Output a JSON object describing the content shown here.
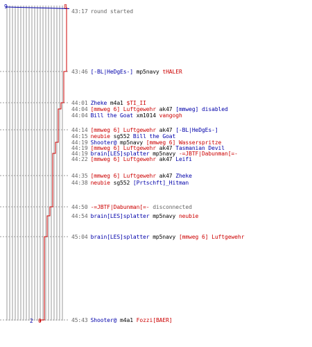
{
  "colors": {
    "blue": "#0000aa",
    "red": "#cc0000",
    "grid": "#999999",
    "time": "#666666"
  },
  "counters": {
    "blue_start": "9",
    "red_start": "8",
    "blue_end": "2",
    "red_end": "0"
  },
  "events": [
    {
      "time": "43:17",
      "parts": [
        {
          "text": "round started",
          "color": "gray"
        }
      ]
    },
    {
      "time": "43:46",
      "parts": [
        {
          "text": "[-BL|HeDgEs-]",
          "color": "blue"
        },
        {
          "text": "mp5navy",
          "color": "black"
        },
        {
          "text": "tHALER",
          "color": "red"
        }
      ]
    },
    {
      "time": "44:01",
      "parts": [
        {
          "text": "Zheke",
          "color": "blue"
        },
        {
          "text": "m4a1",
          "color": "black"
        },
        {
          "text": "$TI_II",
          "color": "red"
        }
      ]
    },
    {
      "time": "44:04",
      "parts": [
        {
          "text": "[mmweg 6] Luftgewehr",
          "color": "red"
        },
        {
          "text": "ak47",
          "color": "black"
        },
        {
          "text": "[mmweg] disabled",
          "color": "blue"
        }
      ]
    },
    {
      "time": "44:04",
      "parts": [
        {
          "text": "Bill the Goat",
          "color": "blue"
        },
        {
          "text": "xm1014",
          "color": "black"
        },
        {
          "text": "vangogh",
          "color": "red"
        }
      ]
    },
    {
      "time": "44:14",
      "parts": [
        {
          "text": "[mmweg 6] Luftgewehr",
          "color": "red"
        },
        {
          "text": "ak47",
          "color": "black"
        },
        {
          "text": "[-BL|HeDgEs-]",
          "color": "blue"
        }
      ]
    },
    {
      "time": "44:15",
      "parts": [
        {
          "text": "neubie",
          "color": "red"
        },
        {
          "text": "sg552",
          "color": "black"
        },
        {
          "text": "Bill the Goat",
          "color": "blue"
        }
      ]
    },
    {
      "time": "44:19",
      "parts": [
        {
          "text": "Shooter@",
          "color": "blue"
        },
        {
          "text": "mp5navy",
          "color": "black"
        },
        {
          "text": "[mmweg 6] Wasserspritze",
          "color": "red"
        }
      ]
    },
    {
      "time": "44:19",
      "parts": [
        {
          "text": "[mmweg 6] Luftgewehr",
          "color": "red"
        },
        {
          "text": "ak47",
          "color": "black"
        },
        {
          "text": "Tasmanian Devil",
          "color": "blue"
        }
      ]
    },
    {
      "time": "44:19",
      "parts": [
        {
          "text": "brain[LES]splatter",
          "color": "blue"
        },
        {
          "text": "mp5navy",
          "color": "black"
        },
        {
          "text": "-=JBTF|Dabunman[=-",
          "color": "red"
        }
      ]
    },
    {
      "time": "44:22",
      "parts": [
        {
          "text": "[mmweg 6] Luftgewehr",
          "color": "red"
        },
        {
          "text": "ak47",
          "color": "black"
        },
        {
          "text": "Leifi",
          "color": "blue"
        }
      ]
    },
    {
      "time": "44:35",
      "parts": [
        {
          "text": "[mmweg 6] Luftgewehr",
          "color": "red"
        },
        {
          "text": "ak47",
          "color": "black"
        },
        {
          "text": "Zheke",
          "color": "blue"
        }
      ]
    },
    {
      "time": "44:38",
      "parts": [
        {
          "text": "neubie",
          "color": "red"
        },
        {
          "text": "sg552",
          "color": "black"
        },
        {
          "text": "[Prtschft]_Hitman",
          "color": "blue"
        }
      ]
    },
    {
      "time": "44:50",
      "parts": [
        {
          "text": "-=JBTF|Dabunman[=-",
          "color": "red"
        },
        {
          "text": "disconnected",
          "color": "gray"
        }
      ]
    },
    {
      "time": "44:54",
      "parts": [
        {
          "text": "brain[LES]splatter",
          "color": "blue"
        },
        {
          "text": "mp5navy",
          "color": "black"
        },
        {
          "text": "neubie",
          "color": "red"
        }
      ]
    },
    {
      "time": "45:04",
      "parts": [
        {
          "text": "brain[LES]splatter",
          "color": "blue"
        },
        {
          "text": "mp5navy",
          "color": "black"
        },
        {
          "text": "[mmweg 6] Luftgewehr",
          "color": "red"
        }
      ]
    },
    {
      "time": "45:43",
      "parts": [
        {
          "text": "Shooter@",
          "color": "blue"
        },
        {
          "text": "m4a1",
          "color": "black"
        },
        {
          "text": "Fozzi[BAER]",
          "color": "red"
        }
      ]
    }
  ]
}
